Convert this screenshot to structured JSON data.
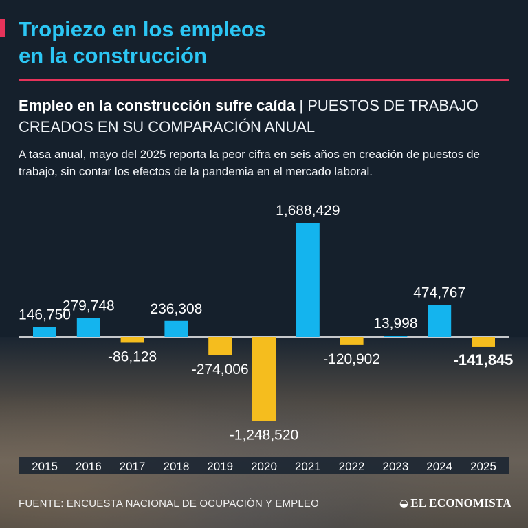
{
  "header": {
    "title_line1": "Tropiezo en los empleos",
    "title_line2": "en la construcción",
    "subtitle_bold": "Empleo en la construcción sufre caída",
    "subtitle_separator": "|",
    "subtitle_rest": "PUESTOS DE TRABAJO CREADOS EN SU COMPARACIÓN ANUAL",
    "description": "A tasa anual, mayo del 2025 reporta la peor cifra en seis años en creación de puestos de trabajo, sin contar los efectos de la pandemia en el mercado laboral."
  },
  "colors": {
    "title": "#2cc6f4",
    "accent": "#e6335a",
    "positive_bar": "#14b4ee",
    "negative_bar": "#f5bd1e"
  },
  "chart_data": {
    "type": "bar",
    "categories": [
      "2015",
      "2016",
      "2017",
      "2018",
      "2019",
      "2020",
      "2021",
      "2022",
      "2023",
      "2024",
      "2025"
    ],
    "values": [
      146750,
      279748,
      -86128,
      236308,
      -274006,
      -1248520,
      1688429,
      -120902,
      13998,
      474767,
      -141845
    ],
    "labels": [
      "146,750",
      "279,748",
      "-86,128",
      "236,308",
      "-274,006",
      "-1,248,520",
      "1,688,429",
      "-120,902",
      "13,998",
      "474,767",
      "-141,845"
    ],
    "highlight_index": 10,
    "title": "",
    "xlabel": "",
    "ylabel": "",
    "grid": false,
    "legend": "none"
  },
  "footer": {
    "source": "FUENTE: ENCUESTA NACIONAL DE OCUPACIÓN Y EMPLEO",
    "logo_text": "EL ECONOMISTA",
    "logo_icon": "economista-mark-icon"
  }
}
